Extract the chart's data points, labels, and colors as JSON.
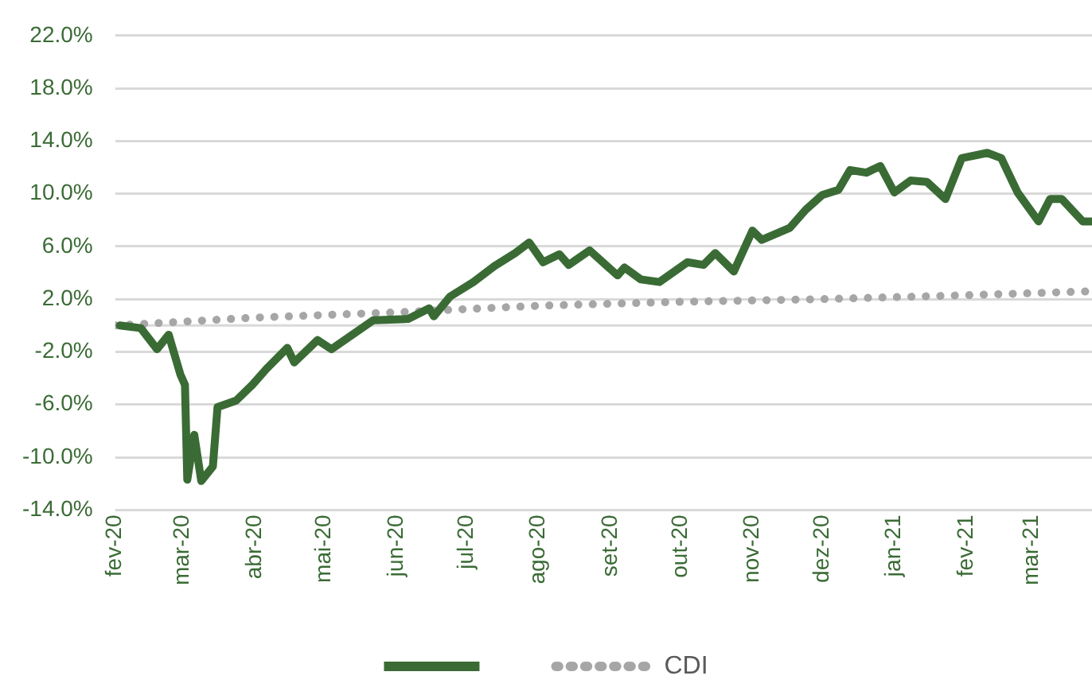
{
  "chart_data": {
    "type": "line",
    "xlim": [
      "2020-02-01",
      "2021-03-27"
    ],
    "xticks": [
      {
        "value": "2020-02-01",
        "label": "fev-20"
      },
      {
        "value": "2020-03-01",
        "label": "mar-20"
      },
      {
        "value": "2020-04-01",
        "label": "abr-20"
      },
      {
        "value": "2020-05-01",
        "label": "mai-20"
      },
      {
        "value": "2020-06-01",
        "label": "jun-20"
      },
      {
        "value": "2020-07-01",
        "label": "jul-20"
      },
      {
        "value": "2020-08-01",
        "label": "ago-20"
      },
      {
        "value": "2020-09-01",
        "label": "set-20"
      },
      {
        "value": "2020-10-01",
        "label": "out-20"
      },
      {
        "value": "2020-11-01",
        "label": "nov-20"
      },
      {
        "value": "2020-12-01",
        "label": "dez-20"
      },
      {
        "value": "2021-01-01",
        "label": "jan-21"
      },
      {
        "value": "2021-02-01",
        "label": "fev-21"
      },
      {
        "value": "2021-03-01",
        "label": "mar-21"
      }
    ],
    "ylim": [
      -14,
      22
    ],
    "yticks": [
      {
        "value": -14,
        "label": "-14.0%"
      },
      {
        "value": -10,
        "label": "-10.0%"
      },
      {
        "value": -6,
        "label": "-6.0%"
      },
      {
        "value": -2,
        "label": "-2.0%"
      },
      {
        "value": 2,
        "label": "2.0%"
      },
      {
        "value": 6,
        "label": "6.0%"
      },
      {
        "value": 10,
        "label": "10.0%"
      },
      {
        "value": 14,
        "label": "14.0%"
      },
      {
        "value": 18,
        "label": "18.0%"
      },
      {
        "value": 22,
        "label": "22.0%"
      }
    ],
    "grid": "y",
    "legend": "bottom",
    "marker": "none",
    "ref_lines": [
      {
        "axis": "y",
        "value": 0,
        "color": "#d9d9d9"
      }
    ],
    "series": [
      {
        "color": "#3a6b35",
        "line_style": "solid",
        "x": [
          "2020-02-03",
          "2020-02-12",
          "2020-02-19",
          "2020-02-24",
          "2020-02-29",
          "2020-03-02",
          "2020-03-03",
          "2020-03-06",
          "2020-03-09",
          "2020-03-14",
          "2020-03-16",
          "2020-03-24",
          "2020-03-31",
          "2020-04-06",
          "2020-04-15",
          "2020-04-18",
          "2020-04-28",
          "2020-05-04",
          "2020-05-13",
          "2020-05-22",
          "2020-06-06",
          "2020-06-15",
          "2020-06-17",
          "2020-06-24",
          "2020-07-04",
          "2020-07-13",
          "2020-07-22",
          "2020-07-28",
          "2020-08-03",
          "2020-08-10",
          "2020-08-14",
          "2020-08-23",
          "2020-09-04",
          "2020-09-07",
          "2020-09-14",
          "2020-09-22",
          "2020-10-04",
          "2020-10-11",
          "2020-10-16",
          "2020-10-24",
          "2020-11-01",
          "2020-11-05",
          "2020-11-17",
          "2020-11-24",
          "2020-12-01",
          "2020-12-08",
          "2020-12-13",
          "2020-12-20",
          "2020-12-26",
          "2021-01-01",
          "2021-01-08",
          "2021-01-15",
          "2021-01-23",
          "2021-01-30",
          "2021-02-10",
          "2021-02-16",
          "2021-02-23",
          "2021-03-04",
          "2021-03-09",
          "2021-03-14",
          "2021-03-23",
          "2021-03-27"
        ],
        "values": [
          0.0,
          -0.2,
          -1.8,
          -0.7,
          -3.7,
          -4.5,
          -11.7,
          -8.3,
          -11.8,
          -10.7,
          -6.2,
          -5.7,
          -4.5,
          -3.3,
          -1.7,
          -2.8,
          -1.1,
          -1.8,
          -0.7,
          0.4,
          0.5,
          1.3,
          0.7,
          2.2,
          3.3,
          4.5,
          5.5,
          6.3,
          4.8,
          5.4,
          4.6,
          5.7,
          3.8,
          4.4,
          3.5,
          3.3,
          4.8,
          4.6,
          5.5,
          4.1,
          7.2,
          6.5,
          7.4,
          8.8,
          9.9,
          10.3,
          11.8,
          11.6,
          12.1,
          10.1,
          11.0,
          10.9,
          9.6,
          12.7,
          13.1,
          12.7,
          10.1,
          7.9,
          9.6,
          9.6,
          7.9,
          7.9
        ]
      },
      {
        "name": "CDI",
        "color": "#a6a6a6",
        "line_style": "dotted",
        "x": [
          "2020-02-01",
          "2020-04-01",
          "2020-06-01",
          "2020-08-01",
          "2020-10-01",
          "2020-12-01",
          "2021-02-01",
          "2021-03-27"
        ],
        "values": [
          0.0,
          0.6,
          1.0,
          1.5,
          1.8,
          2.0,
          2.3,
          2.6
        ]
      }
    ]
  }
}
